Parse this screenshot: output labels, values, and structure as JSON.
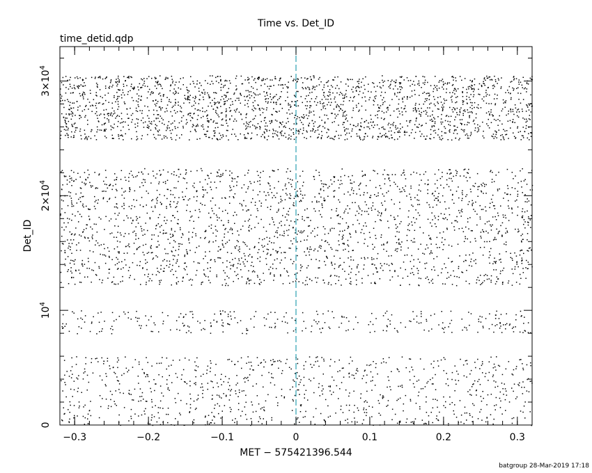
{
  "chart_data": {
    "type": "scatter",
    "title": "Time vs. Det_ID",
    "subtitle": "time_detid.qdp",
    "xlabel": "MET − 575421396.544",
    "ylabel": "Det_ID",
    "xlim": [
      -0.32,
      0.32
    ],
    "ylim": [
      0,
      33000
    ],
    "x_ticks": [
      {
        "value": -0.3,
        "label": "−0.3"
      },
      {
        "value": -0.2,
        "label": "−0.2"
      },
      {
        "value": -0.1,
        "label": "−0.1"
      },
      {
        "value": 0,
        "label": "0"
      },
      {
        "value": 0.1,
        "label": "0.1"
      },
      {
        "value": 0.2,
        "label": "0.2"
      },
      {
        "value": 0.3,
        "label": "0.3"
      }
    ],
    "y_ticks": [
      {
        "value": 0,
        "base": "0",
        "exp": ""
      },
      {
        "value": 10000,
        "base": "10",
        "exp": "4"
      },
      {
        "value": 20000,
        "base": "2×10",
        "exp": "4"
      },
      {
        "value": 30000,
        "base": "3×10",
        "exp": "4"
      }
    ],
    "marker_line": {
      "x": 0,
      "color": "#2a9fb0",
      "style": "dashed"
    },
    "point_color": "#000000",
    "density_bands": [
      {
        "y_range": [
          0,
          6000
        ],
        "density": "medium"
      },
      {
        "y_range": [
          8000,
          10000
        ],
        "density": "low"
      },
      {
        "y_range": [
          12200,
          22400
        ],
        "density": "high"
      },
      {
        "y_range": [
          24900,
          30500
        ],
        "density": "high"
      }
    ],
    "grid": false,
    "legend": "none"
  },
  "footer": {
    "credit": "batgroup 28-Mar-2019 17:18"
  }
}
